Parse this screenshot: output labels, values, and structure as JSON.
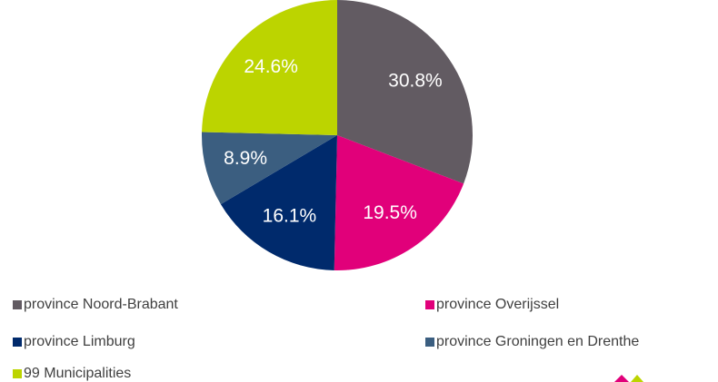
{
  "chart_data": {
    "type": "pie",
    "categories": [
      "province Noord-Brabant",
      "province Overijssel",
      "province Limburg",
      "province Groningen en Drenthe",
      "99 Municipalities"
    ],
    "values": [
      30.8,
      19.5,
      16.1,
      8.9,
      24.6
    ],
    "value_labels": [
      "30.8%",
      "19.5%",
      "16.1%",
      "8.9%",
      "24.6%"
    ],
    "colors": [
      "#625b62",
      "#e1007a",
      "#002a6c",
      "#3b5e80",
      "#bcd400"
    ],
    "legend": "bottom"
  }
}
